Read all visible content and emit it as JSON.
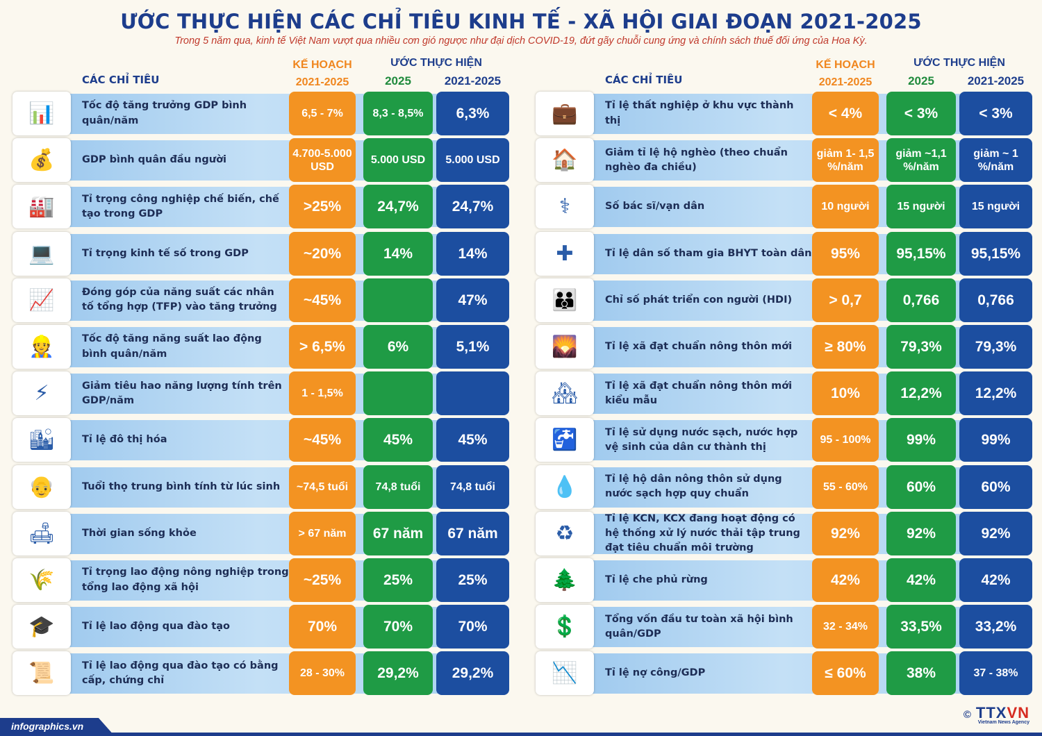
{
  "title": "ƯỚC THỰC HIỆN CÁC CHỈ TIÊU KINH TẾ - XÃ HỘI GIAI ĐOẠN 2021-2025",
  "subtitle": "Trong 5 năm qua, kinh tế Việt Nam vượt qua nhiều cơn gió ngược như đại dịch COVID-19, đứt gãy chuỗi cung ứng và chính sách thuế đối ứng của Hoa Kỳ.",
  "headers": {
    "indicators": "CÁC CHỈ TIÊU",
    "plan": "KẾ HOẠCH",
    "plan_period": "2021-2025",
    "estimate": "ƯỚC THỰC HIỆN",
    "est_2025": "2025",
    "est_period": "2021-2025"
  },
  "colors": {
    "plan": "#f39322",
    "est_2025": "#1f9b45",
    "est_period": "#1c4ea0",
    "title": "#1d3d8c"
  },
  "left_rows": [
    {
      "name": "Tốc độ tăng trưởng GDP bình quân/năm",
      "icon": "chart-icon",
      "plan": "6,5 - 7%",
      "y2025": "8,3 - 8,5%",
      "period": "6,3%"
    },
    {
      "name": "GDP bình quân đầu người",
      "icon": "money-growth-icon",
      "plan": "4.700-5.000 USD",
      "y2025": "5.000 USD",
      "period": "5.000 USD"
    },
    {
      "name": "Tỉ trọng công nghiệp chế biến, chế tạo trong GDP",
      "icon": "factory-icon",
      "plan": ">25%",
      "y2025": "24,7%",
      "period": "24,7%"
    },
    {
      "name": "Tỉ trọng kinh tế số trong GDP",
      "icon": "digital-economy-icon",
      "plan": "~20%",
      "y2025": "14%",
      "period": "14%"
    },
    {
      "name": "Đóng góp của năng suất các nhân tố tổng hợp (TFP) vào tăng trưởng",
      "icon": "tablet-chart-icon",
      "plan": "~45%",
      "y2025": "",
      "period": "47%"
    },
    {
      "name": "Tốc độ tăng năng suất lao động bình quân/năm",
      "icon": "workers-icon",
      "plan": "> 6,5%",
      "y2025": "6%",
      "period": "5,1%"
    },
    {
      "name": "Giảm tiêu hao năng lượng tính trên GDP/năm",
      "icon": "energy-meter-icon",
      "plan": "1 - 1,5%",
      "y2025": "",
      "period": ""
    },
    {
      "name": "Tỉ lệ đô thị hóa",
      "icon": "city-icon",
      "plan": "~45%",
      "y2025": "45%",
      "period": "45%"
    },
    {
      "name": "Tuổi thọ trung bình tính từ lúc sinh",
      "icon": "elderly-couple-icon",
      "plan": "~74,5 tuổi",
      "y2025": "74,8 tuổi",
      "period": "74,8 tuổi"
    },
    {
      "name": "Thời gian sống khỏe",
      "icon": "family-sofa-icon",
      "plan": "> 67 năm",
      "y2025": "67 năm",
      "period": "67 năm"
    },
    {
      "name": "Tỉ trọng lao động nông nghiệp trong tổng lao động xã hội",
      "icon": "farmer-icon",
      "plan": "~25%",
      "y2025": "25%",
      "period": "25%"
    },
    {
      "name": "Tỉ lệ lao động qua đào tạo",
      "icon": "training-icon",
      "plan": "70%",
      "y2025": "70%",
      "period": "70%"
    },
    {
      "name": "Tỉ lệ lao động qua đào tạo có bằng cấp, chứng chỉ",
      "icon": "certificate-icon",
      "plan": "28 - 30%",
      "y2025": "29,2%",
      "period": "29,2%"
    }
  ],
  "right_rows": [
    {
      "name": "Tỉ lệ thất nghiệp ở khu vực thành thị",
      "icon": "unemployed-icon",
      "plan": "< 4%",
      "y2025": "< 3%",
      "period": "< 3%"
    },
    {
      "name": "Giảm tỉ lệ hộ nghèo (theo chuẩn nghèo đa chiều)",
      "icon": "house-icon",
      "plan": "giảm 1- 1,5 %/năm",
      "y2025": "giảm ~1,1 %/năm",
      "period": "giảm ~ 1 %/năm"
    },
    {
      "name": "Số bác sĩ/vạn dân",
      "icon": "doctor-icon",
      "plan": "10 người",
      "y2025": "15 người",
      "period": "15 người"
    },
    {
      "name": "Tỉ lệ dân số tham gia BHYT toàn dân",
      "icon": "health-insurance-icon",
      "plan": "95%",
      "y2025": "95,15%",
      "period": "95,15%"
    },
    {
      "name": "Chỉ số phát triển con người (HDI)",
      "icon": "people-icon",
      "plan": "> 0,7",
      "y2025": "0,766",
      "period": "0,766"
    },
    {
      "name": "Tỉ lệ xã đạt chuẩn nông thôn mới",
      "icon": "rural-icon",
      "plan": "≥ 80%",
      "y2025": "79,3%",
      "period": "79,3%"
    },
    {
      "name": "Tỉ lệ xã đạt chuẩn nông thôn mới kiểu mẫu",
      "icon": "model-village-icon",
      "plan": "10%",
      "y2025": "12,2%",
      "period": "12,2%"
    },
    {
      "name": "Tỉ lệ sử dụng nước sạch, nước hợp vệ sinh của dân cư thành thị",
      "icon": "faucet-icon",
      "plan": "95 - 100%",
      "y2025": "99%",
      "period": "99%"
    },
    {
      "name": "Tỉ lệ hộ dân nông thôn sử dụng nước sạch hợp quy chuẩn",
      "icon": "water-bucket-icon",
      "plan": "55 - 60%",
      "y2025": "60%",
      "period": "60%"
    },
    {
      "name": "Tỉ lệ KCN, KCX đang hoạt động có hệ thống xử lý nước thải tập trung đạt tiêu chuẩn môi trường",
      "icon": "wastewater-icon",
      "plan": "92%",
      "y2025": "92%",
      "period": "92%"
    },
    {
      "name": "Tỉ lệ che phủ rừng",
      "icon": "forest-icon",
      "plan": "42%",
      "y2025": "42%",
      "period": "42%"
    },
    {
      "name": "Tổng vốn đầu tư toàn xã hội bình quân/GDP",
      "icon": "coins-icon",
      "plan": "32 - 34%",
      "y2025": "33,5%",
      "period": "33,2%"
    },
    {
      "name": "Tỉ lệ nợ công/GDP",
      "icon": "debt-icon",
      "plan": "≤ 60%",
      "y2025": "38%",
      "period": "37 - 38%"
    }
  ],
  "footer": {
    "site": "infographics.vn",
    "copyright": "©",
    "brand_a": "TTX",
    "brand_b": "VN",
    "agency": "Vietnam News Agency"
  }
}
